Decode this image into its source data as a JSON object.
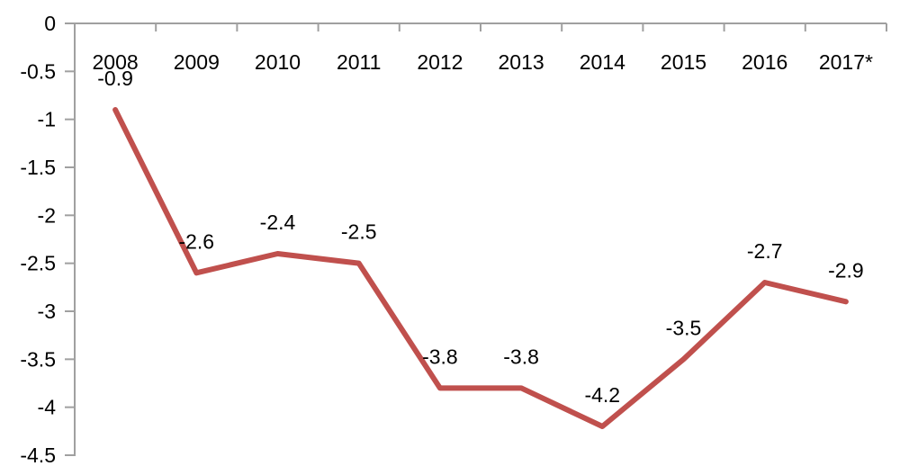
{
  "chart": {
    "colors": {
      "line": "#C0504D",
      "axis": "#A0A0A0",
      "text": "#000000",
      "background": "#FFFFFF"
    }
  },
  "chart_data": {
    "type": "line",
    "title": "",
    "xlabel": "",
    "ylabel": "",
    "categories": [
      "2008",
      "2009",
      "2010",
      "2011",
      "2012",
      "2013",
      "2014",
      "2015",
      "2016",
      "2017*"
    ],
    "values": [
      -0.9,
      -2.6,
      -2.4,
      -2.5,
      -3.8,
      -3.8,
      -4.2,
      -3.5,
      -2.7,
      -2.9
    ],
    "data_labels": [
      "-0.9",
      "-2.6",
      "-2.4",
      "-2.5",
      "-3.8",
      "-3.8",
      "-4.2",
      "-3.5",
      "-2.7",
      "-2.9"
    ],
    "y_ticks": [
      0,
      -0.5,
      -1,
      -1.5,
      -2,
      -2.5,
      -3,
      -3.5,
      -4,
      -4.5
    ],
    "y_tick_labels": [
      "0",
      "-0.5",
      "-1",
      "-1.5",
      "-2",
      "-2.5",
      "-3",
      "-3.5",
      "-4",
      "-4.5"
    ],
    "ylim": [
      -4.5,
      0
    ],
    "grid": false,
    "legend": false,
    "data_labels_shown": true,
    "category_labels_position": "below-zero-axis"
  }
}
